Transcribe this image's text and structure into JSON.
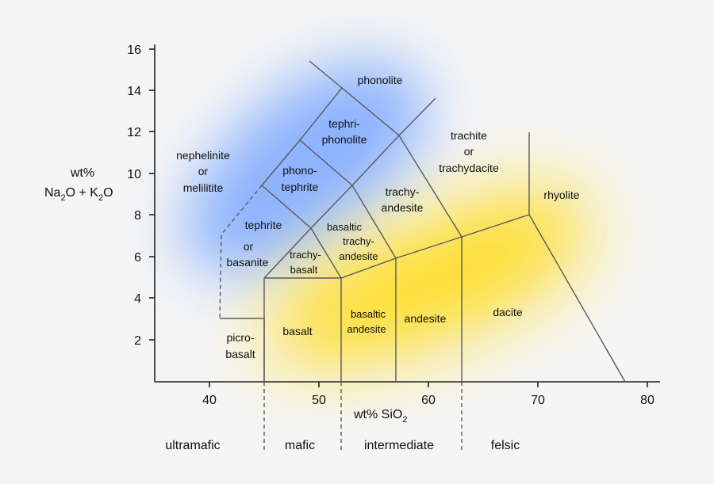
{
  "colors": {
    "background": "#f5f5f5",
    "alkaline_glow": "#7aa7ff",
    "subalkaline_glow": "#ffe020",
    "boundary": "#5a5a5a",
    "axis": "#222222"
  },
  "y_axis": {
    "label_line1": "wt%",
    "label_na": "Na",
    "label_sub1": "2",
    "label_mid": "O + K",
    "label_sub2": "2",
    "label_end": "O",
    "ticks": [
      "2",
      "4",
      "6",
      "8",
      "10",
      "12",
      "14",
      "16"
    ]
  },
  "x_axis": {
    "label_main": "wt% SiO",
    "label_sub": "2",
    "ticks": [
      "40",
      "50",
      "60",
      "70",
      "80"
    ]
  },
  "fields": {
    "phonolite": "phonolite",
    "tephriphonolite": [
      "tephri-",
      "phonolite"
    ],
    "phonotephrite": [
      "phono-",
      "tephrite"
    ],
    "foidite": [
      "nephelinite",
      "or",
      "melilitite"
    ],
    "tephrite_basanite": [
      "tephrite",
      "or",
      "basanite"
    ],
    "trachyte": [
      "trachite",
      "or",
      "trachydacite"
    ],
    "trachyandesite": [
      "trachy-",
      "andesite"
    ],
    "basaltic_trachyandesite": [
      "basaltic",
      "trachy-",
      "andesite"
    ],
    "trachybasalt": [
      "trachy-",
      "basalt"
    ],
    "rhyolite": "rhyolite",
    "picrobasalt": [
      "picro-",
      "basalt"
    ],
    "basalt": "basalt",
    "basaltic_andesite": [
      "basaltic",
      "andesite"
    ],
    "andesite": "andesite",
    "dacite": "dacite"
  },
  "classes": [
    "ultramafic",
    "mafic",
    "intermediate",
    "felsic"
  ]
}
